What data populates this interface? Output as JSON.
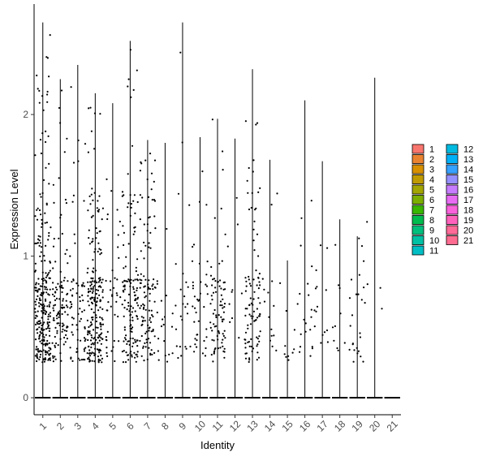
{
  "chart_data": {
    "type": "violin",
    "xlabel": "Identity",
    "ylabel": "Expression Level",
    "ylim": [
      -0.12,
      2.78
    ],
    "yticks": [
      0,
      1,
      2
    ],
    "categories": [
      "1",
      "2",
      "3",
      "4",
      "5",
      "6",
      "7",
      "8",
      "9",
      "10",
      "11",
      "12",
      "13",
      "14",
      "15",
      "16",
      "17",
      "18",
      "19",
      "20",
      "21"
    ],
    "max_values": [
      2.65,
      2.25,
      2.35,
      2.15,
      2.08,
      2.52,
      1.82,
      1.8,
      2.65,
      1.84,
      1.97,
      1.83,
      2.32,
      1.68,
      0.97,
      2.1,
      1.67,
      1.26,
      1.14,
      2.26,
      0.0
    ],
    "legend": {
      "position": "right",
      "entries": [
        {
          "label": "1",
          "color": "#F8766D"
        },
        {
          "label": "2",
          "color": "#EA8331"
        },
        {
          "label": "3",
          "color": "#D89000"
        },
        {
          "label": "4",
          "color": "#C09B00"
        },
        {
          "label": "5",
          "color": "#A3A500"
        },
        {
          "label": "6",
          "color": "#7CAE00"
        },
        {
          "label": "7",
          "color": "#39B600"
        },
        {
          "label": "8",
          "color": "#00BB4E"
        },
        {
          "label": "9",
          "color": "#00BF7D"
        },
        {
          "label": "10",
          "color": "#00C1A3"
        },
        {
          "label": "11",
          "color": "#00BFC4"
        },
        {
          "label": "12",
          "color": "#00BAE0"
        },
        {
          "label": "13",
          "color": "#00B0F6"
        },
        {
          "label": "14",
          "color": "#35A2FF"
        },
        {
          "label": "15",
          "color": "#9590FF"
        },
        {
          "label": "16",
          "color": "#C77CFF"
        },
        {
          "label": "17",
          "color": "#E76BF3"
        },
        {
          "label": "18",
          "color": "#FA62DB"
        },
        {
          "label": "19",
          "color": "#FF62BC"
        },
        {
          "label": "20",
          "color": "#FF6A98"
        },
        {
          "label": "21",
          "color": "#FF6C91"
        }
      ]
    },
    "grid": false
  }
}
